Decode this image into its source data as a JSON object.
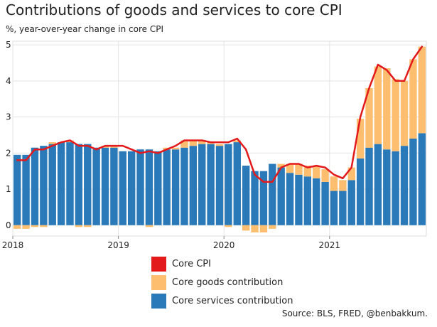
{
  "chart_data": {
    "type": "bar",
    "stacked": true,
    "title": "Contributions of goods and services to core CPI",
    "subtitle": "%, year-over-year change in core CPI",
    "source": "Source: BLS, FRED, @benbakkum.",
    "x": [
      "2018-01",
      "2018-02",
      "2018-03",
      "2018-04",
      "2018-05",
      "2018-06",
      "2018-07",
      "2018-08",
      "2018-09",
      "2018-10",
      "2018-11",
      "2018-12",
      "2019-01",
      "2019-02",
      "2019-03",
      "2019-04",
      "2019-05",
      "2019-06",
      "2019-07",
      "2019-08",
      "2019-09",
      "2019-10",
      "2019-11",
      "2019-12",
      "2020-01",
      "2020-02",
      "2020-03",
      "2020-04",
      "2020-05",
      "2020-06",
      "2020-07",
      "2020-08",
      "2020-09",
      "2020-10",
      "2020-11",
      "2020-12",
      "2021-01",
      "2021-02",
      "2021-03",
      "2021-04",
      "2021-05",
      "2021-06",
      "2021-07",
      "2021-08",
      "2021-09",
      "2021-10",
      "2021-11"
    ],
    "x_ticks": [
      {
        "label": "2018",
        "index": 0
      },
      {
        "label": "2019",
        "index": 12
      },
      {
        "label": "2020",
        "index": 24
      },
      {
        "label": "2021",
        "index": 36
      }
    ],
    "ylim": [
      -0.3,
      5.1
    ],
    "y_ticks": [
      0,
      1,
      2,
      3,
      4,
      5
    ],
    "grid": true,
    "legend_position": "bottom-center",
    "series": [
      {
        "name": "Core services contribution",
        "type": "bar",
        "color": "#2a7ab9",
        "values": [
          1.95,
          1.95,
          2.15,
          2.2,
          2.25,
          2.3,
          2.3,
          2.25,
          2.25,
          2.15,
          2.15,
          2.15,
          2.05,
          2.05,
          2.1,
          2.1,
          2.05,
          2.1,
          2.1,
          2.15,
          2.2,
          2.25,
          2.25,
          2.2,
          2.25,
          2.3,
          1.65,
          1.5,
          1.5,
          1.7,
          1.6,
          1.45,
          1.4,
          1.35,
          1.3,
          1.2,
          0.95,
          0.95,
          1.25,
          1.85,
          2.15,
          2.25,
          2.1,
          2.05,
          2.2,
          2.4,
          2.55
        ]
      },
      {
        "name": "Core goods contribution",
        "type": "bar",
        "color": "#fdbf6f",
        "values": [
          -0.1,
          -0.1,
          -0.05,
          -0.05,
          0.05,
          0.0,
          0.05,
          -0.05,
          -0.05,
          0.0,
          0.05,
          0.05,
          0.0,
          0.0,
          0.0,
          -0.05,
          0.0,
          0.05,
          0.05,
          0.2,
          0.15,
          0.1,
          0.05,
          0.05,
          -0.05,
          0.05,
          -0.15,
          -0.2,
          -0.2,
          -0.1,
          0.1,
          0.25,
          0.3,
          0.3,
          0.35,
          0.35,
          0.4,
          0.3,
          0.35,
          1.1,
          1.65,
          2.15,
          2.25,
          2.0,
          1.8,
          2.2,
          2.4
        ]
      },
      {
        "name": "Core CPI",
        "type": "line",
        "color": "#e31a1c",
        "values": [
          1.8,
          1.8,
          2.1,
          2.1,
          2.2,
          2.3,
          2.35,
          2.2,
          2.2,
          2.1,
          2.2,
          2.2,
          2.2,
          2.1,
          2.0,
          2.05,
          2.0,
          2.1,
          2.2,
          2.35,
          2.35,
          2.35,
          2.3,
          2.3,
          2.3,
          2.4,
          2.1,
          1.4,
          1.2,
          1.2,
          1.6,
          1.7,
          1.7,
          1.6,
          1.65,
          1.6,
          1.4,
          1.3,
          1.6,
          3.0,
          3.8,
          4.45,
          4.3,
          4.0,
          4.0,
          4.6,
          4.95
        ]
      }
    ]
  },
  "legend": [
    {
      "label": "Core CPI",
      "color": "#e31a1c"
    },
    {
      "label": "Core goods contribution",
      "color": "#fdbf6f"
    },
    {
      "label": "Core services contribution",
      "color": "#2a7ab9"
    }
  ]
}
